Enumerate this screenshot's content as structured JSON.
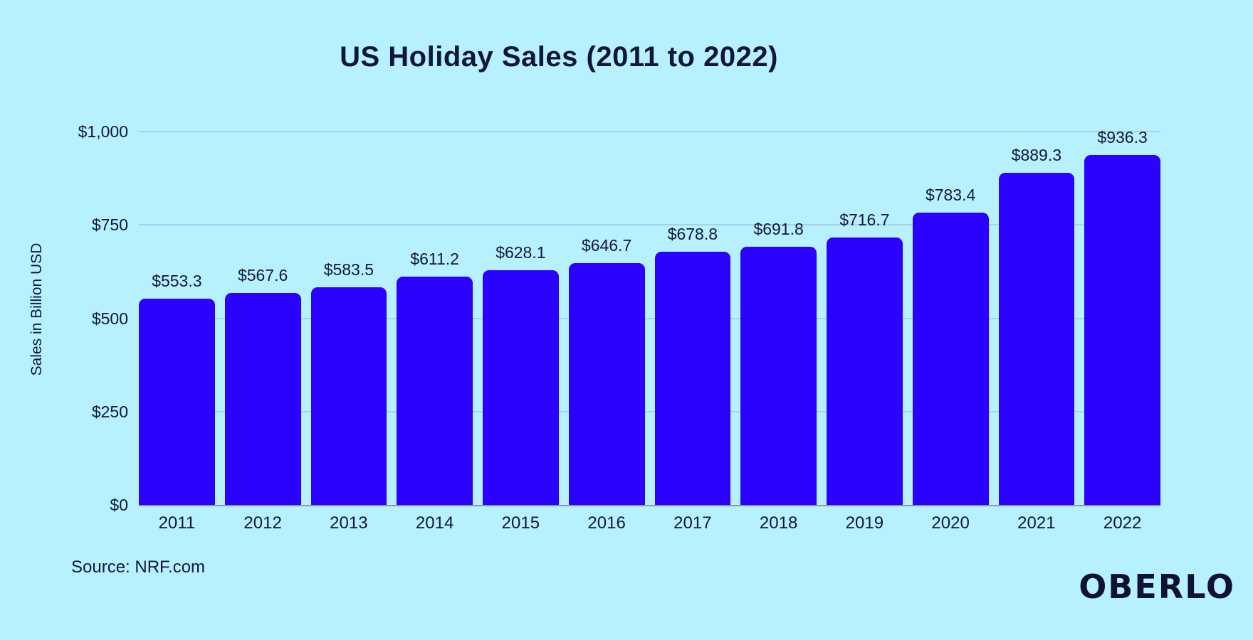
{
  "source": "Source: NRF.com",
  "brand": "OBERLO",
  "colors": {
    "background": "#b7f1fe",
    "bar": "#2a02fd",
    "text": "#12173a",
    "gridline": "#a6d4e2",
    "axis_line": "#8c99a3"
  },
  "chart_data": {
    "type": "bar",
    "title": "US Holiday Sales (2011 to 2022)",
    "ylabel": "Sales in Billion USD",
    "xlabel": "",
    "categories": [
      "2011",
      "2012",
      "2013",
      "2014",
      "2015",
      "2016",
      "2017",
      "2018",
      "2019",
      "2020",
      "2021",
      "2022"
    ],
    "values": [
      553.3,
      567.6,
      583.5,
      611.2,
      628.1,
      646.7,
      678.8,
      691.8,
      716.7,
      783.4,
      889.3,
      936.3
    ],
    "value_prefix": "$",
    "bar_labels": [
      "$553.3",
      "$567.6",
      "$583.5",
      "$611.2",
      "$628.1",
      "$646.7",
      "$678.8",
      "$691.8",
      "$716.7",
      "$783.4",
      "$889.3",
      "$936.3"
    ],
    "yticks": [
      0,
      250,
      500,
      750,
      1000
    ],
    "ytick_labels": [
      "$0",
      "$250",
      "$500",
      "$750",
      "$1,000"
    ],
    "ylim": [
      0,
      1000
    ],
    "grid": true,
    "legend_position": "none"
  }
}
